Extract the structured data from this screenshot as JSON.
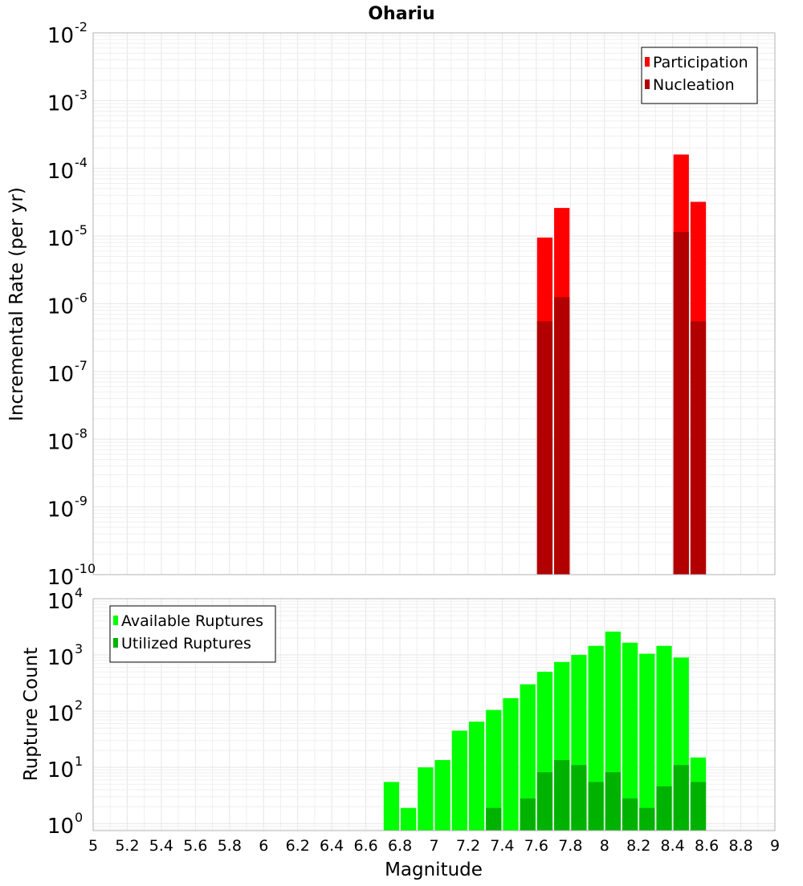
{
  "chart_data": [
    {
      "type": "bar",
      "title": "Ohariu",
      "xlabel": "",
      "ylabel": "Incremental Rate (per yr)",
      "xlim": [
        5,
        9
      ],
      "ylim": [
        1e-10,
        0.01
      ],
      "y_scale": "log",
      "grid": true,
      "bar_width": 0.1,
      "legend_position": "top-right",
      "y_ticks": [
        {
          "mant": "10",
          "exp": "-10",
          "value": 1e-10
        },
        {
          "mant": "10",
          "exp": "-9",
          "value": 1e-09
        },
        {
          "mant": "10",
          "exp": "-8",
          "value": 1e-08
        },
        {
          "mant": "10",
          "exp": "-7",
          "value": 1e-07
        },
        {
          "mant": "10",
          "exp": "-6",
          "value": 1e-06
        },
        {
          "mant": "10",
          "exp": "-5",
          "value": 1e-05
        },
        {
          "mant": "10",
          "exp": "-4",
          "value": 0.0001
        },
        {
          "mant": "10",
          "exp": "-3",
          "value": 0.001
        },
        {
          "mant": "10",
          "exp": "-2",
          "value": 0.01
        }
      ],
      "series": [
        {
          "name": "Participation",
          "color": "#ff0000",
          "x": [
            7.65,
            7.75,
            8.45,
            8.55
          ],
          "values": [
            9.5e-06,
            2.6e-05,
            0.00016,
            3.2e-05
          ]
        },
        {
          "name": "Nucleation",
          "color": "#b20000",
          "x": [
            7.65,
            7.75,
            8.45,
            8.55
          ],
          "values": [
            5.5e-07,
            1.25e-06,
            1.15e-05,
            5.5e-07
          ]
        }
      ]
    },
    {
      "type": "bar",
      "title": "",
      "xlabel": "Magnitude",
      "ylabel": "Rupture Count",
      "xlim": [
        5,
        9
      ],
      "ylim": [
        0.75,
        10000
      ],
      "y_scale": "log",
      "grid": true,
      "bar_width": 0.1,
      "legend_position": "top-left",
      "x_ticks": [
        "5",
        "5.2",
        "5.4",
        "5.6",
        "5.8",
        "6",
        "6.2",
        "6.4",
        "6.6",
        "6.8",
        "7",
        "7.2",
        "7.4",
        "7.6",
        "7.8",
        "8",
        "8.2",
        "8.4",
        "8.6",
        "8.8",
        "9"
      ],
      "y_ticks": [
        {
          "mant": "10",
          "exp": "0",
          "value": 1
        },
        {
          "mant": "10",
          "exp": "1",
          "value": 10
        },
        {
          "mant": "10",
          "exp": "2",
          "value": 100
        },
        {
          "mant": "10",
          "exp": "3",
          "value": 1000
        },
        {
          "mant": "10",
          "exp": "4",
          "value": 10000
        }
      ],
      "series": [
        {
          "name": "Available Ruptures",
          "color": "#00ff00",
          "x": [
            6.75,
            6.85,
            6.95,
            7.05,
            7.15,
            7.25,
            7.35,
            7.45,
            7.55,
            7.65,
            7.75,
            7.85,
            7.95,
            8.05,
            8.15,
            8.25,
            8.35,
            8.45,
            8.55
          ],
          "values": [
            5.5,
            1.9,
            10,
            13.5,
            45,
            65,
            105,
            170,
            300,
            500,
            750,
            1000,
            1450,
            2600,
            1650,
            1050,
            1450,
            900,
            15
          ]
        },
        {
          "name": "Utilized Ruptures",
          "color": "#00b200",
          "x": [
            7.35,
            7.55,
            7.65,
            7.75,
            7.85,
            7.95,
            8.05,
            8.15,
            8.25,
            8.35,
            8.45,
            8.55
          ],
          "values": [
            1.9,
            2.8,
            8.2,
            13.5,
            11,
            5.5,
            8.2,
            2.8,
            1.9,
            4.6,
            11,
            5.5
          ]
        }
      ]
    }
  ]
}
